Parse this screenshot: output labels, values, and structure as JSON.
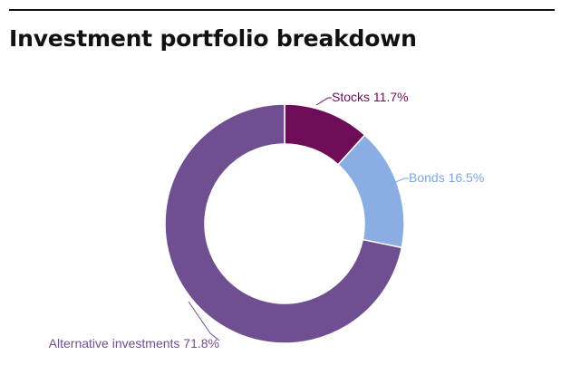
{
  "chart_data": {
    "type": "pie",
    "variant": "donut",
    "title": "Investment portfolio breakdown",
    "legend": "none",
    "slices": [
      {
        "label": "Stocks",
        "value_text": "11.7%",
        "value": 11.7,
        "color": "#6e0d57",
        "text_color": "#6e0d57"
      },
      {
        "label": "Bonds",
        "value_text": "16.5%",
        "value": 16.5,
        "color": "#8aaee3",
        "text_color": "#7ea6de"
      },
      {
        "label": "Alternative investments",
        "value_text": "71.8%",
        "value": 71.8,
        "color": "#6f4f90",
        "text_color": "#6f4f90"
      }
    ]
  }
}
